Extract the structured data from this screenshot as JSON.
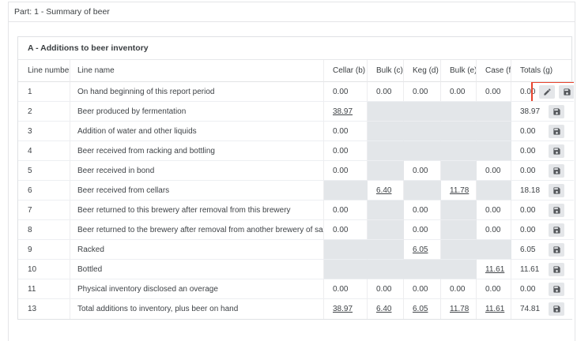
{
  "page": {
    "title": "Part: 1 - Summary of beer"
  },
  "card": {
    "title": "A - Additions to beer inventory"
  },
  "table": {
    "columns": [
      "Line number",
      "Line name",
      "Cellar (b)",
      "Bulk (c)",
      "Keg (d)",
      "Bulk (e)",
      "Case (f)",
      "Totals (g)"
    ],
    "rows": [
      {
        "line": "1",
        "name": "On hand beginning of this report period",
        "values": [
          {
            "text": "0.00",
            "disabled": false,
            "link": false
          },
          {
            "text": "0.00",
            "disabled": false,
            "link": false
          },
          {
            "text": "0.00",
            "disabled": false,
            "link": false
          },
          {
            "text": "0.00",
            "disabled": false,
            "link": false
          },
          {
            "text": "0.00",
            "disabled": false,
            "link": false
          }
        ],
        "total": "0.00",
        "actions": [
          "edit",
          "save"
        ],
        "highlight": true
      },
      {
        "line": "2",
        "name": "Beer produced by fermentation",
        "values": [
          {
            "text": "38.97",
            "disabled": false,
            "link": true
          },
          {
            "text": "",
            "disabled": true,
            "link": false
          },
          {
            "text": "",
            "disabled": true,
            "link": false
          },
          {
            "text": "",
            "disabled": true,
            "link": false
          },
          {
            "text": "",
            "disabled": true,
            "link": false
          }
        ],
        "total": "38.97",
        "actions": [
          "save"
        ],
        "highlight": false
      },
      {
        "line": "3",
        "name": "Addition of water and other liquids",
        "values": [
          {
            "text": "0.00",
            "disabled": false,
            "link": false
          },
          {
            "text": "",
            "disabled": true,
            "link": false
          },
          {
            "text": "",
            "disabled": true,
            "link": false
          },
          {
            "text": "",
            "disabled": true,
            "link": false
          },
          {
            "text": "",
            "disabled": true,
            "link": false
          }
        ],
        "total": "0.00",
        "actions": [
          "save"
        ],
        "highlight": false
      },
      {
        "line": "4",
        "name": "Beer received from racking and bottling",
        "values": [
          {
            "text": "0.00",
            "disabled": false,
            "link": false
          },
          {
            "text": "",
            "disabled": true,
            "link": false
          },
          {
            "text": "",
            "disabled": true,
            "link": false
          },
          {
            "text": "",
            "disabled": true,
            "link": false
          },
          {
            "text": "",
            "disabled": true,
            "link": false
          }
        ],
        "total": "0.00",
        "actions": [
          "save"
        ],
        "highlight": false
      },
      {
        "line": "5",
        "name": "Beer received in bond",
        "values": [
          {
            "text": "0.00",
            "disabled": false,
            "link": false
          },
          {
            "text": "",
            "disabled": true,
            "link": false
          },
          {
            "text": "0.00",
            "disabled": false,
            "link": false
          },
          {
            "text": "",
            "disabled": true,
            "link": false
          },
          {
            "text": "0.00",
            "disabled": false,
            "link": false
          }
        ],
        "total": "0.00",
        "actions": [
          "save"
        ],
        "highlight": false
      },
      {
        "line": "6",
        "name": "Beer received from cellars",
        "values": [
          {
            "text": "",
            "disabled": true,
            "link": false
          },
          {
            "text": "6.40",
            "disabled": false,
            "link": true
          },
          {
            "text": "",
            "disabled": true,
            "link": false
          },
          {
            "text": "11.78",
            "disabled": false,
            "link": true
          },
          {
            "text": "",
            "disabled": true,
            "link": false
          }
        ],
        "total": "18.18",
        "actions": [
          "save"
        ],
        "highlight": false
      },
      {
        "line": "7",
        "name": "Beer returned to this brewery after removal from this brewery",
        "values": [
          {
            "text": "0.00",
            "disabled": false,
            "link": false
          },
          {
            "text": "",
            "disabled": true,
            "link": false
          },
          {
            "text": "0.00",
            "disabled": false,
            "link": false
          },
          {
            "text": "",
            "disabled": true,
            "link": false
          },
          {
            "text": "0.00",
            "disabled": false,
            "link": false
          }
        ],
        "total": "0.00",
        "actions": [
          "save"
        ],
        "highlight": false
      },
      {
        "line": "8",
        "name": "Beer returned to the brewery after removal from another brewery of same ownership",
        "values": [
          {
            "text": "0.00",
            "disabled": false,
            "link": false
          },
          {
            "text": "",
            "disabled": true,
            "link": false
          },
          {
            "text": "0.00",
            "disabled": false,
            "link": false
          },
          {
            "text": "",
            "disabled": true,
            "link": false
          },
          {
            "text": "0.00",
            "disabled": false,
            "link": false
          }
        ],
        "total": "0.00",
        "actions": [
          "save"
        ],
        "highlight": false
      },
      {
        "line": "9",
        "name": "Racked",
        "values": [
          {
            "text": "",
            "disabled": true,
            "link": false
          },
          {
            "text": "",
            "disabled": true,
            "link": false
          },
          {
            "text": "6.05",
            "disabled": false,
            "link": true
          },
          {
            "text": "",
            "disabled": true,
            "link": false
          },
          {
            "text": "",
            "disabled": true,
            "link": false
          }
        ],
        "total": "6.05",
        "actions": [
          "save"
        ],
        "highlight": false
      },
      {
        "line": "10",
        "name": "Bottled",
        "values": [
          {
            "text": "",
            "disabled": true,
            "link": false
          },
          {
            "text": "",
            "disabled": true,
            "link": false
          },
          {
            "text": "",
            "disabled": true,
            "link": false
          },
          {
            "text": "",
            "disabled": true,
            "link": false
          },
          {
            "text": "11.61",
            "disabled": false,
            "link": true
          }
        ],
        "total": "11.61",
        "actions": [
          "save"
        ],
        "highlight": false
      },
      {
        "line": "11",
        "name": "Physical inventory disclosed an overage",
        "values": [
          {
            "text": "0.00",
            "disabled": false,
            "link": false
          },
          {
            "text": "0.00",
            "disabled": false,
            "link": false
          },
          {
            "text": "0.00",
            "disabled": false,
            "link": false
          },
          {
            "text": "0.00",
            "disabled": false,
            "link": false
          },
          {
            "text": "0.00",
            "disabled": false,
            "link": false
          }
        ],
        "total": "0.00",
        "actions": [
          "save"
        ],
        "highlight": false
      },
      {
        "line": "13",
        "name": "Total additions to inventory, plus beer on hand",
        "values": [
          {
            "text": "38.97",
            "disabled": false,
            "link": true
          },
          {
            "text": "6.40",
            "disabled": false,
            "link": true
          },
          {
            "text": "6.05",
            "disabled": false,
            "link": true
          },
          {
            "text": "11.78",
            "disabled": false,
            "link": true
          },
          {
            "text": "11.61",
            "disabled": false,
            "link": true
          }
        ],
        "total": "74.81",
        "actions": [
          "save"
        ],
        "highlight": false
      }
    ]
  },
  "icons": {
    "edit": "pencil-icon",
    "save": "floppy-disk-icon"
  },
  "colors": {
    "highlight_box": "#e8432d",
    "disabled_cell_bg": "#e3e6e9",
    "button_bg": "#e4e6e9",
    "border": "#dfe1e4",
    "text": "#3f4347"
  }
}
